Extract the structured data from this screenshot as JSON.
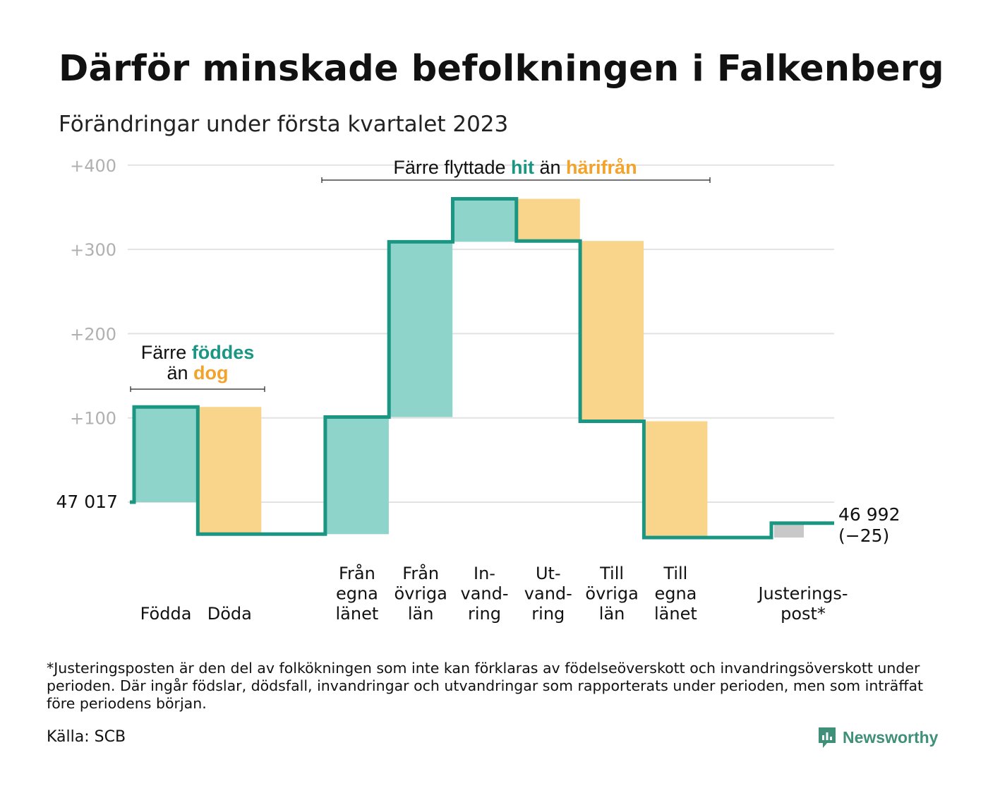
{
  "title": "Därför minskade befolkningen i Falkenberg",
  "subtitle": "Förändringar under första kvartalet 2023",
  "annotations": {
    "births": {
      "line1_pre": "Färre ",
      "line1_hl": "föddes",
      "line2_pre": "än ",
      "line2_hl": "dog"
    },
    "moves": {
      "pre": "Färre flyttade ",
      "hl1": "hit",
      "mid": " än ",
      "hl2": "härifrån"
    }
  },
  "start_label": "47 017",
  "end_label": {
    "line1": "46 992",
    "line2": "(−25)"
  },
  "footnote": "*Justeringsposten är den del av folkökningen som inte kan förklaras av födelseöverskott och invandringsöverskott under perioden. Där ingår födslar, dödsfall, invandringar och utvandringar som rapporterats under perioden, men som inträffat före periodens början.",
  "source": "Källa: SCB",
  "brand": "Newsworthy",
  "colors": {
    "inflow": "#8ed4ca",
    "outflow": "#f9d58c",
    "adjustment": "#c8c8c8",
    "line": "#1a9683",
    "highlight_in": "#1a9683",
    "highlight_out": "#f2a32b",
    "grid": "#e2e2e2",
    "tick_text": "#b0b0b0"
  },
  "chart_data": {
    "type": "waterfall",
    "y_axis": {
      "ylim": [
        -70,
        400
      ],
      "ticks": [
        100,
        200,
        300,
        400
      ],
      "tick_labels": [
        "+100",
        "+200",
        "+300",
        "+400"
      ]
    },
    "baseline": 47017,
    "end_value": 46992,
    "net_change": -25,
    "steps": [
      {
        "label": [
          "Födda"
        ],
        "value": 113,
        "kind": "inflow"
      },
      {
        "label": [
          "Döda"
        ],
        "value": -151,
        "kind": "outflow"
      },
      {
        "label": [],
        "value": 0,
        "kind": "gap"
      },
      {
        "label": [
          "Från",
          "egna",
          "länet"
        ],
        "value": 139,
        "kind": "inflow"
      },
      {
        "label": [
          "Från",
          "övriga",
          "län"
        ],
        "value": 208,
        "kind": "inflow"
      },
      {
        "label": [
          "In-",
          "vand-",
          "ring"
        ],
        "value": 51,
        "kind": "inflow"
      },
      {
        "label": [
          "Ut-",
          "vand-",
          "ring"
        ],
        "value": -50,
        "kind": "outflow"
      },
      {
        "label": [
          "Till",
          "övriga",
          "län"
        ],
        "value": -214,
        "kind": "outflow"
      },
      {
        "label": [
          "Till",
          "egna",
          "länet"
        ],
        "value": -138,
        "kind": "outflow"
      },
      {
        "label": [],
        "value": 0,
        "kind": "gap"
      },
      {
        "label": [
          "Justerings-",
          "post*"
        ],
        "value": 17,
        "kind": "adjustment"
      }
    ]
  }
}
